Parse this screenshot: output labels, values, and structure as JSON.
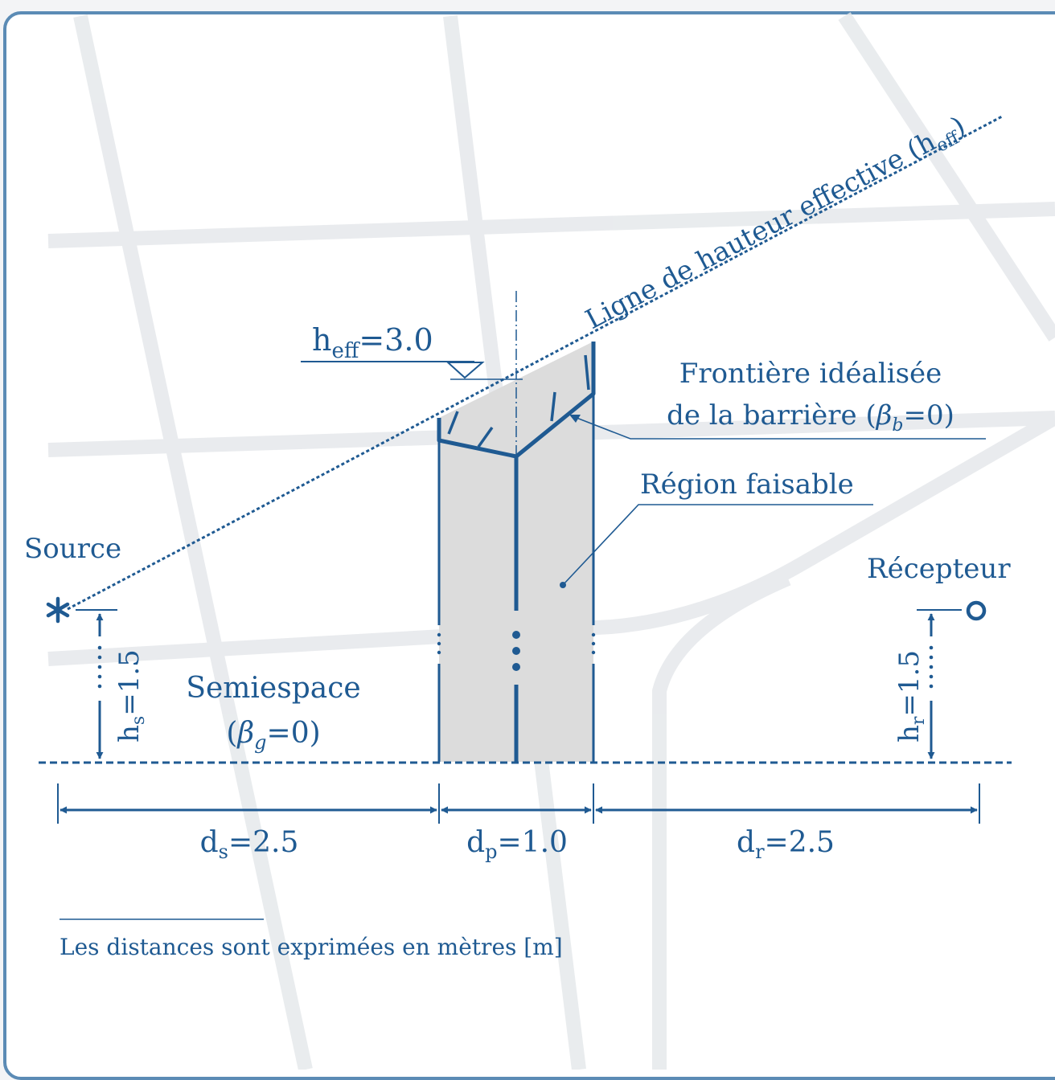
{
  "colors": {
    "stroke": "#1f5a92",
    "region_fill": "#dcdcdc",
    "frame": "#5b8bb5",
    "background_grid": "#e6e8ea"
  },
  "labels": {
    "source": "Source",
    "receiver": "Récepteur",
    "h_eff_main": "h",
    "h_eff_sub": "eff",
    "h_eff_value": "=3.0",
    "effective_line_main": "Ligne de hauteur effective (h",
    "effective_line_sub": "eff",
    "effective_line_close": ")",
    "boundary_line1": "Frontière idéalisée",
    "boundary_line2_prefix": "de la barrière (",
    "boundary_beta": "β",
    "boundary_beta_sub": "b",
    "boundary_line2_suffix": "=0)",
    "feasible_region": "Région faisable",
    "halfspace_line1": "Semiespace",
    "halfspace_prefix": "(",
    "halfspace_beta": "β",
    "halfspace_beta_sub": "g",
    "halfspace_suffix": "=0)",
    "hs_main": "h",
    "hs_sub": "s",
    "hs_value": "=1.5",
    "hr_main": "h",
    "hr_sub": "r",
    "hr_value": "=1.5",
    "ds_main": "d",
    "ds_sub": "s",
    "ds_value": "=2.5",
    "dp_main": "d",
    "dp_sub": "p",
    "dp_value": "=1.0",
    "dr_main": "d",
    "dr_sub": "r",
    "dr_value": "=2.5",
    "footnote": "Les distances sont exprimées en mètres [m]"
  },
  "icons": {
    "source": "asterisk-icon",
    "receiver": "circle-icon",
    "level": "triangle-level-icon"
  }
}
